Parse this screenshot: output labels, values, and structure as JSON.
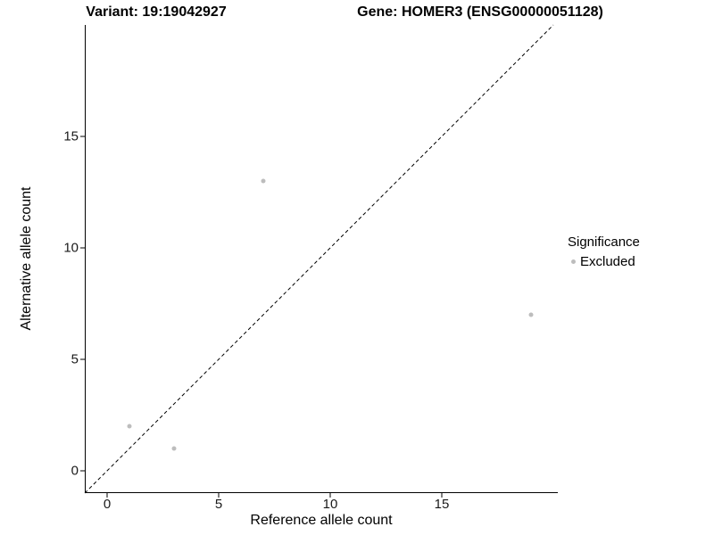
{
  "chart_data": {
    "type": "scatter",
    "title_left": "Variant: 19:19042927",
    "title_right": "Gene: HOMER3 (ENSG00000051128)",
    "xlabel": "Reference allele count",
    "ylabel": "Alternative allele count",
    "xlim": [
      -1,
      20.2
    ],
    "ylim": [
      -1,
      20
    ],
    "xticks": [
      0,
      5,
      10,
      15
    ],
    "yticks": [
      0,
      5,
      10,
      15
    ],
    "grid": false,
    "axis_color": "#000000",
    "identity_line": {
      "style": "dashed",
      "color": "#000000",
      "from": -1,
      "to": 20
    },
    "point_radius": 2.5,
    "series": [
      {
        "name": "Excluded",
        "color": "#bdbdbd",
        "points": [
          {
            "x": 1,
            "y": 2
          },
          {
            "x": 3,
            "y": 1
          },
          {
            "x": 7,
            "y": 13
          },
          {
            "x": 19,
            "y": 7
          }
        ]
      }
    ],
    "legend": {
      "title": "Significance",
      "position": "right",
      "items": [
        {
          "label": "Excluded",
          "color": "#bdbdbd",
          "marker": "dot"
        }
      ]
    }
  }
}
